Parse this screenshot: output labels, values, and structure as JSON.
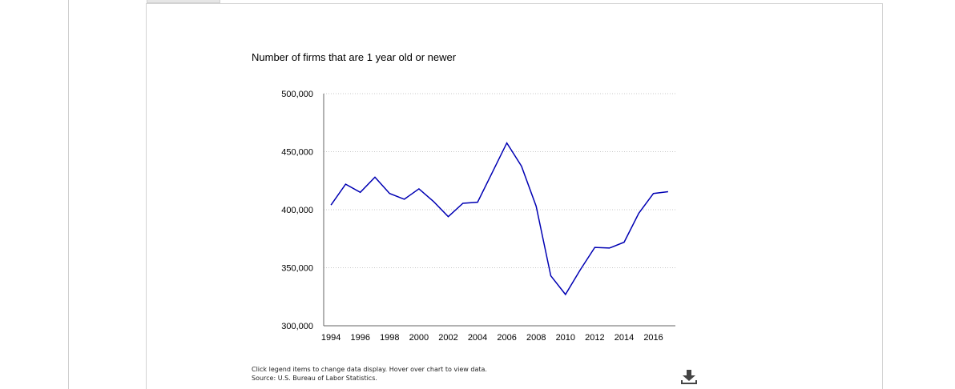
{
  "chart_data": {
    "type": "line",
    "title": "Number of firms that are 1 year old or newer",
    "xlabel": "",
    "ylabel": "",
    "x": [
      1994,
      1995,
      1996,
      1997,
      1998,
      1999,
      2000,
      2001,
      2002,
      2003,
      2004,
      2005,
      2006,
      2007,
      2008,
      2009,
      2010,
      2011,
      2012,
      2013,
      2014,
      2015,
      2016,
      2017
    ],
    "series": [
      {
        "values": [
          404000,
          422000,
          415000,
          428000,
          414000,
          409000,
          418000,
          407000,
          394000,
          405500,
          406500,
          432000,
          457500,
          437500,
          403000,
          343000,
          327000,
          348000,
          367500,
          367000,
          372000,
          397000,
          414000,
          415500
        ],
        "color": "#0000b3"
      }
    ],
    "xticks": [
      1994,
      1996,
      1998,
      2000,
      2002,
      2004,
      2006,
      2008,
      2010,
      2012,
      2014,
      2016
    ],
    "xtick_labels": [
      "1994",
      "1996",
      "1998",
      "2000",
      "2002",
      "2004",
      "2006",
      "2008",
      "2010",
      "2012",
      "2014",
      "2016"
    ],
    "yticks": [
      300000,
      350000,
      400000,
      450000,
      500000
    ],
    "ytick_labels": [
      "300,000",
      "350,000",
      "400,000",
      "450,000",
      "500,000"
    ],
    "xlim": [
      1993.5,
      2017.5
    ],
    "ylim": [
      300000,
      500000
    ],
    "grid": true,
    "legend": "none"
  },
  "notes": {
    "instruction": "Click legend items to change data display. Hover over chart to view data.",
    "source": "Source: U.S. Bureau of Labor Statistics."
  },
  "icons": {
    "download": "download-icon"
  }
}
